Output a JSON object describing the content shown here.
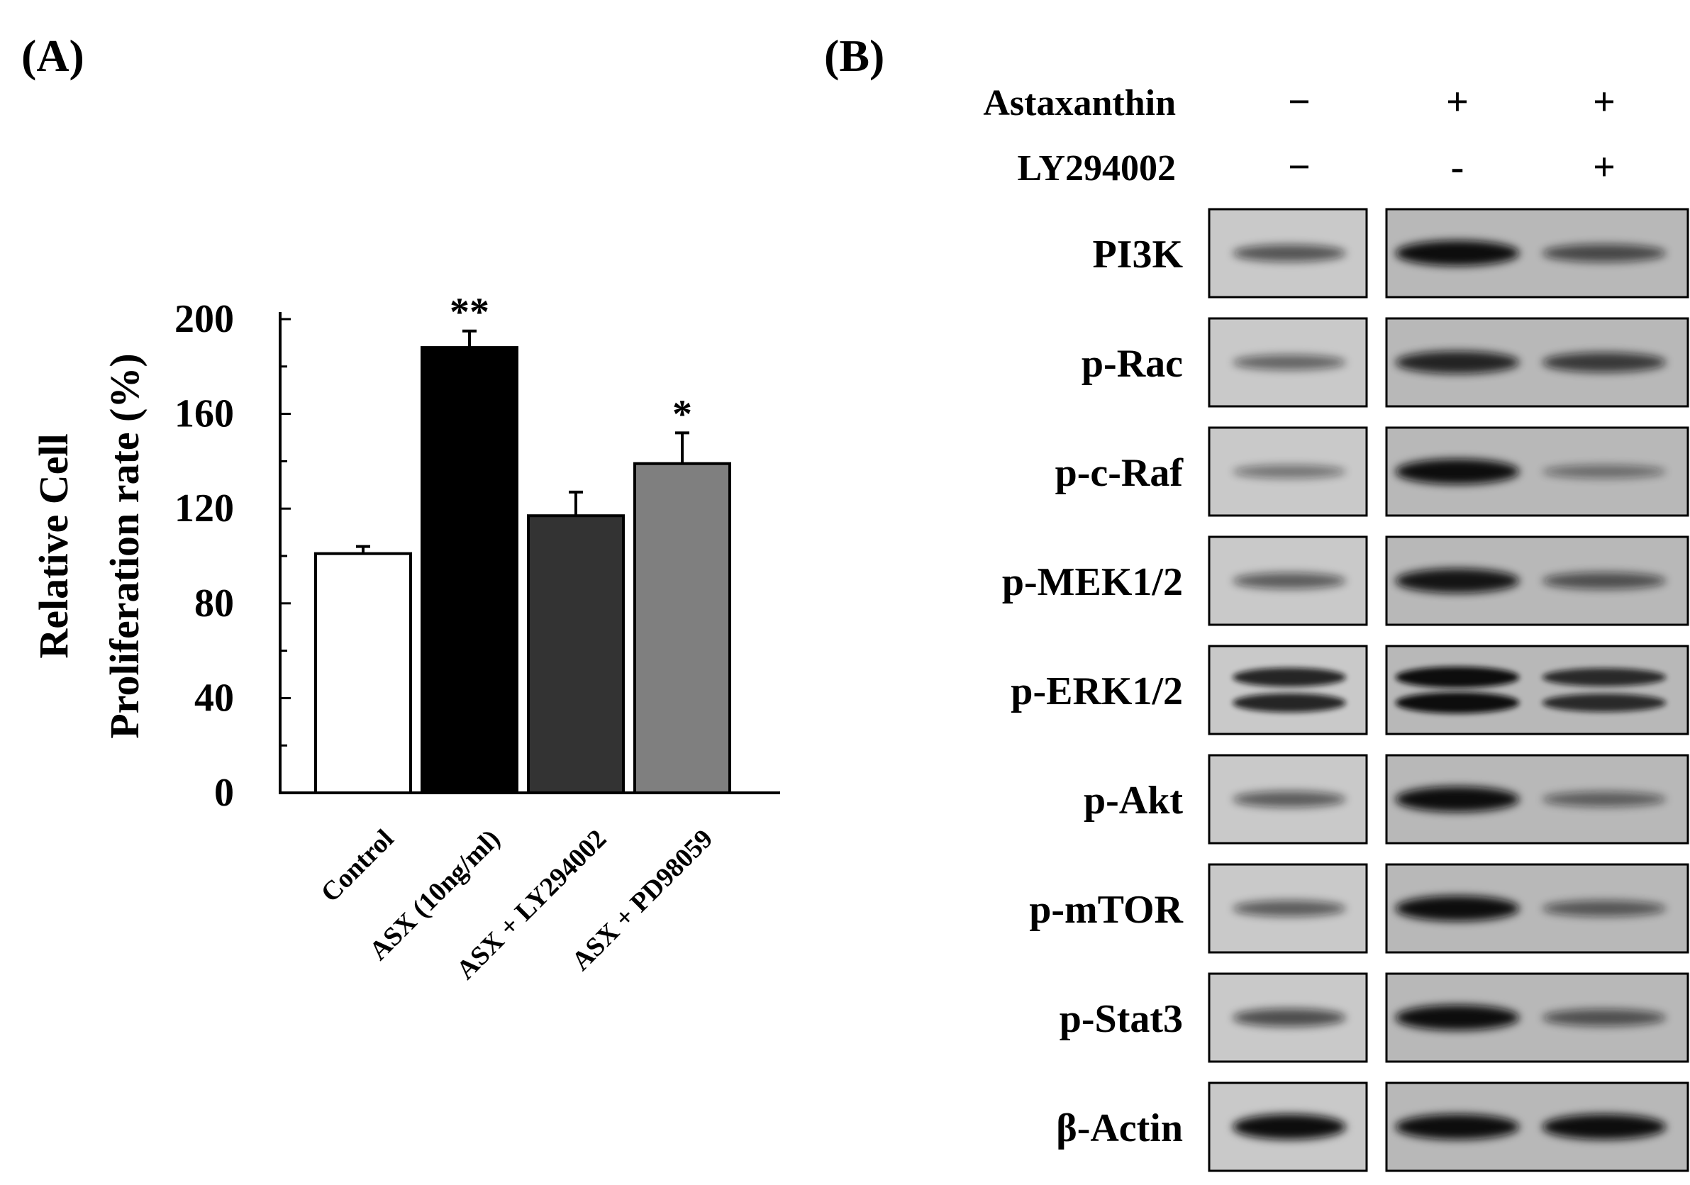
{
  "panel_a": {
    "label": "(A)",
    "chart_data": {
      "type": "bar",
      "title": "",
      "xlabel": "",
      "ylabel_lines": [
        "Relative Cell",
        "Proliferation rate (%)"
      ],
      "ylim": [
        0,
        200
      ],
      "yticks": [
        0,
        40,
        80,
        120,
        160,
        200
      ],
      "grid": false,
      "legend": "none",
      "categories": [
        "Control",
        "ASX (10ng/ml)",
        "ASX + LY294002",
        "ASX + PD98059"
      ],
      "values": [
        101,
        188,
        117,
        139
      ],
      "errors": [
        3,
        7,
        10,
        13
      ],
      "significance": [
        "",
        "**",
        "",
        "*"
      ],
      "bar_colors": [
        "#ffffff",
        "#000000",
        "#333333",
        "#7f7f7f"
      ]
    }
  },
  "panel_b": {
    "label": "(B)",
    "treatments": [
      {
        "name": "Astaxanthin",
        "signs": [
          "−",
          "+",
          "+"
        ]
      },
      {
        "name": "LY294002",
        "signs": [
          "−",
          "-",
          "+"
        ]
      }
    ],
    "blots": [
      {
        "label": "PI3K",
        "intensity": [
          0.55,
          1.0,
          0.6
        ]
      },
      {
        "label": "p-Rac",
        "intensity": [
          0.45,
          0.85,
          0.7
        ]
      },
      {
        "label": "p-c-Raf",
        "intensity": [
          0.35,
          1.0,
          0.35
        ]
      },
      {
        "label": "p-MEK1/2",
        "intensity": [
          0.5,
          0.95,
          0.55
        ]
      },
      {
        "label": "p-ERK1/2",
        "intensity": [
          0.85,
          1.0,
          0.8
        ]
      },
      {
        "label": "p-Akt",
        "intensity": [
          0.5,
          1.0,
          0.45
        ]
      },
      {
        "label": "p-mTOR",
        "intensity": [
          0.5,
          1.0,
          0.5
        ]
      },
      {
        "label": "p-Stat3",
        "intensity": [
          0.6,
          1.0,
          0.55
        ]
      },
      {
        "label": "β-Actin",
        "intensity": [
          1.0,
          1.0,
          1.0
        ]
      }
    ]
  }
}
